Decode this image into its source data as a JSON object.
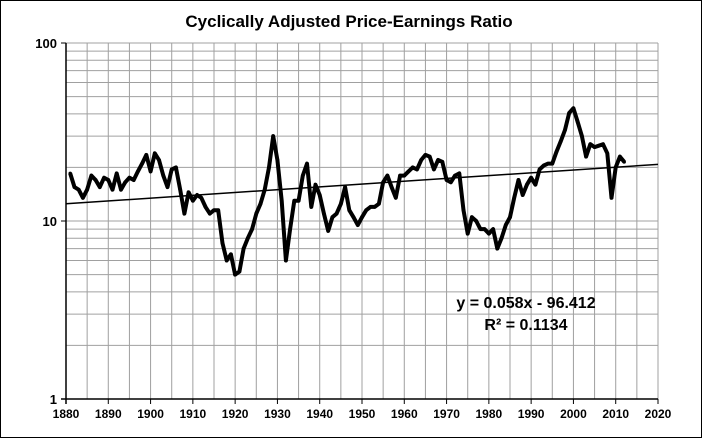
{
  "chart_data": {
    "type": "line",
    "title": "Cyclically Adjusted Price-Earnings Ratio",
    "xlabel": "",
    "ylabel": "",
    "xlim": [
      1880,
      2020
    ],
    "ylim": [
      1,
      100
    ],
    "y_scale": "log",
    "grid": true,
    "x_ticks": [
      "1880",
      "1890",
      "1900",
      "1910",
      "1920",
      "1930",
      "1940",
      "1950",
      "1960",
      "1970",
      "1980",
      "1990",
      "2000",
      "2010",
      "2020"
    ],
    "y_ticks": [
      "1",
      "10",
      "100"
    ],
    "series": [
      {
        "color": "#000000",
        "x": [
          1881,
          1882,
          1883,
          1884,
          1885,
          1886,
          1887,
          1888,
          1889,
          1890,
          1891,
          1892,
          1893,
          1894,
          1895,
          1896,
          1897,
          1898,
          1899,
          1900,
          1901,
          1902,
          1903,
          1904,
          1905,
          1906,
          1907,
          1908,
          1909,
          1910,
          1911,
          1912,
          1913,
          1914,
          1915,
          1916,
          1917,
          1918,
          1919,
          1920,
          1921,
          1922,
          1923,
          1924,
          1925,
          1926,
          1927,
          1928,
          1929,
          1930,
          1931,
          1932,
          1933,
          1934,
          1935,
          1936,
          1937,
          1938,
          1939,
          1940,
          1941,
          1942,
          1943,
          1944,
          1945,
          1946,
          1947,
          1948,
          1949,
          1950,
          1951,
          1952,
          1953,
          1954,
          1955,
          1956,
          1957,
          1958,
          1959,
          1960,
          1961,
          1962,
          1963,
          1964,
          1965,
          1966,
          1967,
          1968,
          1969,
          1970,
          1971,
          1972,
          1973,
          1974,
          1975,
          1976,
          1977,
          1978,
          1979,
          1980,
          1981,
          1982,
          1983,
          1984,
          1985,
          1986,
          1987,
          1988,
          1989,
          1990,
          1991,
          1992,
          1993,
          1994,
          1995,
          1996,
          1997,
          1998,
          1999,
          2000,
          2001,
          2002,
          2003,
          2004,
          2005,
          2006,
          2007,
          2008,
          2009,
          2010,
          2011,
          2012
        ],
        "y": [
          18.5,
          15.5,
          15,
          13.5,
          15,
          18,
          17,
          15.5,
          17.5,
          17,
          15,
          18.5,
          15,
          16.5,
          17.5,
          17,
          19,
          21,
          23.5,
          19,
          24,
          22,
          18,
          15.5,
          19.5,
          20,
          15,
          11,
          14.5,
          13,
          14,
          13.5,
          12,
          11,
          11.5,
          11.5,
          7.5,
          6,
          6.5,
          5,
          5.2,
          7,
          8,
          9,
          11,
          12.5,
          15,
          20,
          30,
          22,
          13,
          6,
          9,
          13,
          13,
          18,
          21,
          12,
          16,
          14,
          11,
          8.8,
          10.5,
          11,
          12.5,
          15.5,
          11.5,
          10.5,
          9.5,
          10.5,
          11.5,
          12,
          12,
          12.5,
          16.5,
          18,
          15.5,
          13.5,
          18,
          18,
          19,
          20,
          19.5,
          22,
          23.5,
          23,
          19.5,
          22,
          21.5,
          17,
          16.5,
          18,
          18.5,
          11.5,
          8.5,
          10.5,
          10,
          9,
          9,
          8.5,
          9,
          7,
          8,
          9.5,
          10.5,
          13.5,
          17,
          14,
          16,
          17.5,
          16,
          19.5,
          20.5,
          21,
          21,
          24.5,
          28,
          32.5,
          40.5,
          43,
          36,
          30,
          23,
          27,
          26,
          26.5,
          27,
          24,
          13.5,
          20,
          23,
          21.5
        ]
      }
    ],
    "trendline": {
      "type": "exponential",
      "x": [
        1880,
        2020
      ],
      "y": [
        12.5,
        20.8
      ],
      "equation": "y = 0.058x - 96.412",
      "r_squared": "R² = 0.1134"
    }
  }
}
